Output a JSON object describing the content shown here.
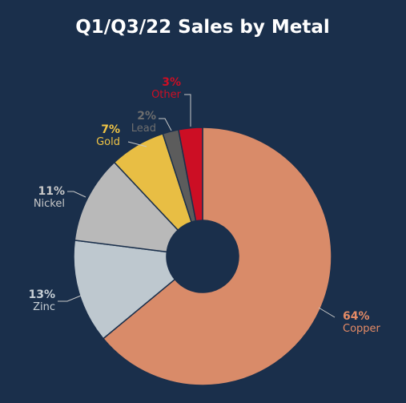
{
  "chart_data": {
    "type": "pie",
    "title": "Q1/Q3/22 Sales by Metal",
    "donut": true,
    "slices": [
      {
        "label": "Copper",
        "percent_label": "64%",
        "value": 64,
        "color": "#d98b69"
      },
      {
        "label": "Zinc",
        "percent_label": "13%",
        "value": 13,
        "color": "#bec8cf"
      },
      {
        "label": "Nickel",
        "percent_label": "11%",
        "value": 11,
        "color": "#b9b9b9"
      },
      {
        "label": "Gold",
        "percent_label": "7%",
        "value": 7,
        "color": "#e8be44"
      },
      {
        "label": "Lead",
        "percent_label": "2%",
        "value": 2,
        "color": "#5c5c5c"
      },
      {
        "label": "Other",
        "percent_label": "3%",
        "value": 3,
        "color": "#cc0e24"
      }
    ],
    "label_colors": {
      "Copper": "#e58b66",
      "Zinc": "#c8d0d6",
      "Nickel": "#c8c8c8",
      "Gold": "#f0c445",
      "Lead": "#6e6e6e",
      "Other": "#cc0e24"
    },
    "background": "#1a2f4b",
    "leader_color": "#c8c8c8"
  }
}
